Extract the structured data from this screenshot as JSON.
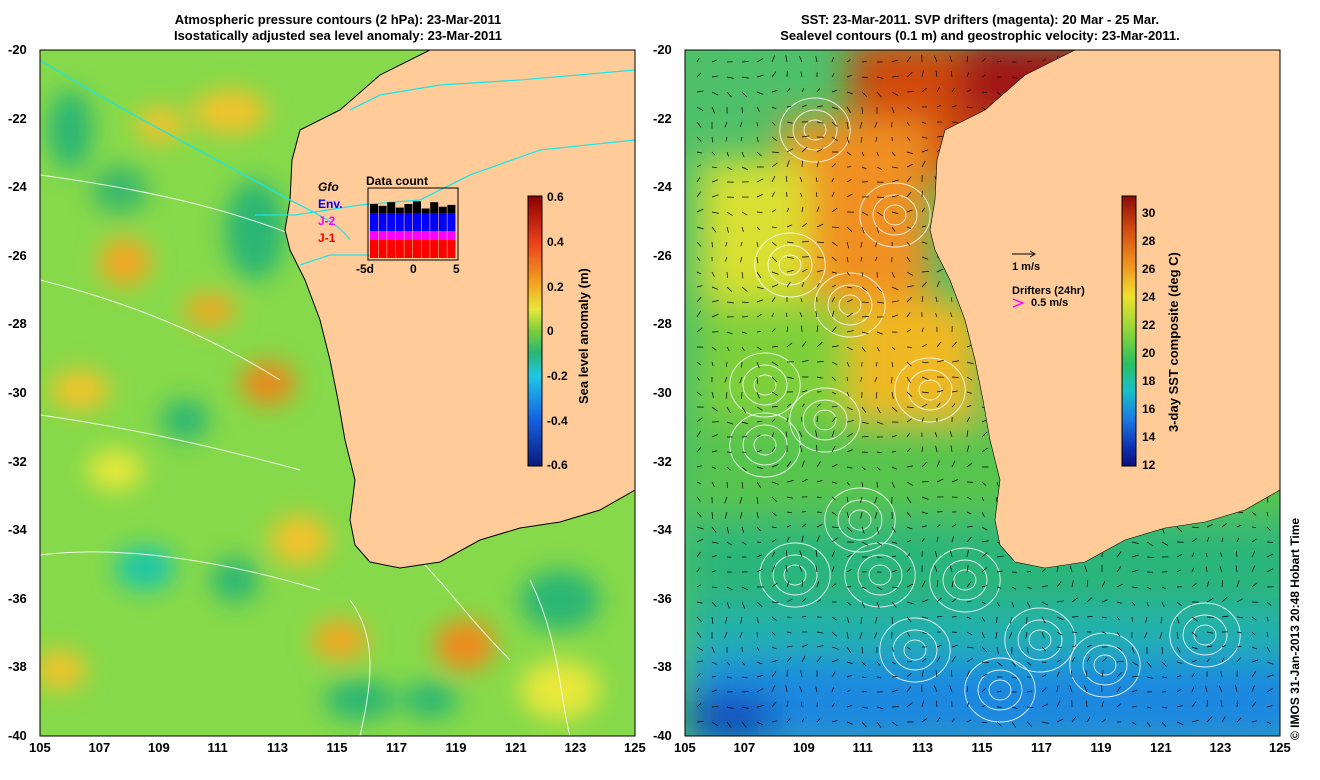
{
  "left_panel": {
    "title_line1": "Atmospheric pressure contours (2 hPa): 23-Mar-2011",
    "title_line2": "Isostatically adjusted sea level anomaly: 23-Mar-2011",
    "colorbar_label": "Sea level anomaly (m)",
    "colorbar_ticks": [
      "0.6",
      "0.4",
      "0.2",
      "0",
      "-0.2",
      "-0.4",
      "-0.6"
    ],
    "legend": {
      "items": [
        {
          "label": "Gfo",
          "color": "#000000"
        },
        {
          "label": "Env.",
          "color": "#0000ff"
        },
        {
          "label": "J-2",
          "color": "#ff00ff"
        },
        {
          "label": "J-1",
          "color": "#ff0000"
        }
      ],
      "inset_title": "Data count",
      "inset_xticks": [
        "-5d",
        "0",
        "5"
      ]
    }
  },
  "right_panel": {
    "title_line1": "SST: 23-Mar-2011. SVP drifters (magenta): 20 Mar - 25 Mar.",
    "title_line2": "Sealevel contours (0.1 m) and geostrophic velocity: 23-Mar-2011.",
    "colorbar_label": "3-day SST composite (deg C)",
    "colorbar_ticks": [
      "30",
      "28",
      "26",
      "24",
      "22",
      "20",
      "18",
      "16",
      "14",
      "12"
    ],
    "velocity_scale": "1 m/s",
    "drifters_label": "Drifters (24hr)",
    "drifters_scale": "0.5 m/s"
  },
  "axes": {
    "x_ticks": [
      "105",
      "107",
      "109",
      "111",
      "113",
      "115",
      "117",
      "119",
      "121",
      "123",
      "125"
    ],
    "y_ticks": [
      "-20",
      "-22",
      "-24",
      "-26",
      "-28",
      "-30",
      "-32",
      "-34",
      "-36",
      "-38",
      "-40"
    ]
  },
  "credit": "© IMOS 31-Jan-2013 20:48 Hobart Time",
  "chart_data": [
    {
      "type": "heatmap",
      "title": "Atmospheric pressure contours (2 hPa): 23-Mar-2011 / Isostatically adjusted sea level anomaly: 23-Mar-2011",
      "xlim": [
        105,
        125
      ],
      "ylim": [
        -40,
        -20
      ],
      "colorbar": {
        "label": "Sea level anomaly (m)",
        "range": [
          -0.6,
          0.6
        ]
      },
      "features": [
        {
          "lon": 108.2,
          "lat": -26.3,
          "value": 0.3
        },
        {
          "lon": 110.8,
          "lat": -27.8,
          "value": 0.25
        },
        {
          "lon": 112.8,
          "lat": -29.6,
          "value": 0.35
        },
        {
          "lon": 110.8,
          "lat": -22.0,
          "value": 0.2
        },
        {
          "lon": 109.5,
          "lat": -22.5,
          "value": 0.18
        },
        {
          "lon": 109.0,
          "lat": -35.3,
          "value": -0.15
        },
        {
          "lon": 111.5,
          "lat": -29.8,
          "value": -0.05
        },
        {
          "lon": 119.5,
          "lat": -37.7,
          "value": 0.35
        },
        {
          "lon": 115.0,
          "lat": -37.4,
          "value": 0.25
        },
        {
          "lon": 113.8,
          "lat": -33.4,
          "value": 0.15
        }
      ],
      "inset": {
        "title": "Data count",
        "x": [
          -5,
          -4,
          -3,
          -2,
          -1,
          0,
          1,
          2,
          3,
          4
        ],
        "series": [
          {
            "name": "J-1",
            "values": [
              2,
              2,
              2,
              2,
              2,
              2,
              2,
              2,
              2,
              2
            ]
          },
          {
            "name": "J-2",
            "values": [
              1,
              1,
              1,
              1,
              1,
              1,
              1,
              1,
              1,
              1
            ]
          },
          {
            "name": "Env.",
            "values": [
              2,
              2,
              2,
              2,
              2,
              2,
              2,
              2,
              2,
              2
            ]
          },
          {
            "name": "Gfo",
            "values": [
              1,
              0.8,
              1.2,
              0.6,
              1,
              1.3,
              0.5,
              1.2,
              0.7,
              0.9
            ]
          }
        ]
      }
    },
    {
      "type": "heatmap",
      "title": "SST: 23-Mar-2011. SVP drifters (magenta): 20 Mar - 25 Mar. / Sealevel contours (0.1 m) and geostrophic velocity: 23-Mar-2011.",
      "xlim": [
        105,
        125
      ],
      "ylim": [
        -40,
        -20
      ],
      "colorbar": {
        "label": "3-day SST composite (deg C)",
        "range": [
          12,
          31
        ]
      },
      "features": [
        {
          "lon": 114.0,
          "lat": -21.0,
          "value": 29
        },
        {
          "lon": 112.5,
          "lat": -26.0,
          "value": 27
        },
        {
          "lon": 113.0,
          "lat": -30.0,
          "value": 25
        },
        {
          "lon": 107.0,
          "lat": -30.0,
          "value": 22
        },
        {
          "lon": 110.0,
          "lat": -35.0,
          "value": 20
        },
        {
          "lon": 118.0,
          "lat": -36.0,
          "value": 19
        },
        {
          "lon": 110.0,
          "lat": -39.5,
          "value": 16
        }
      ]
    }
  ]
}
